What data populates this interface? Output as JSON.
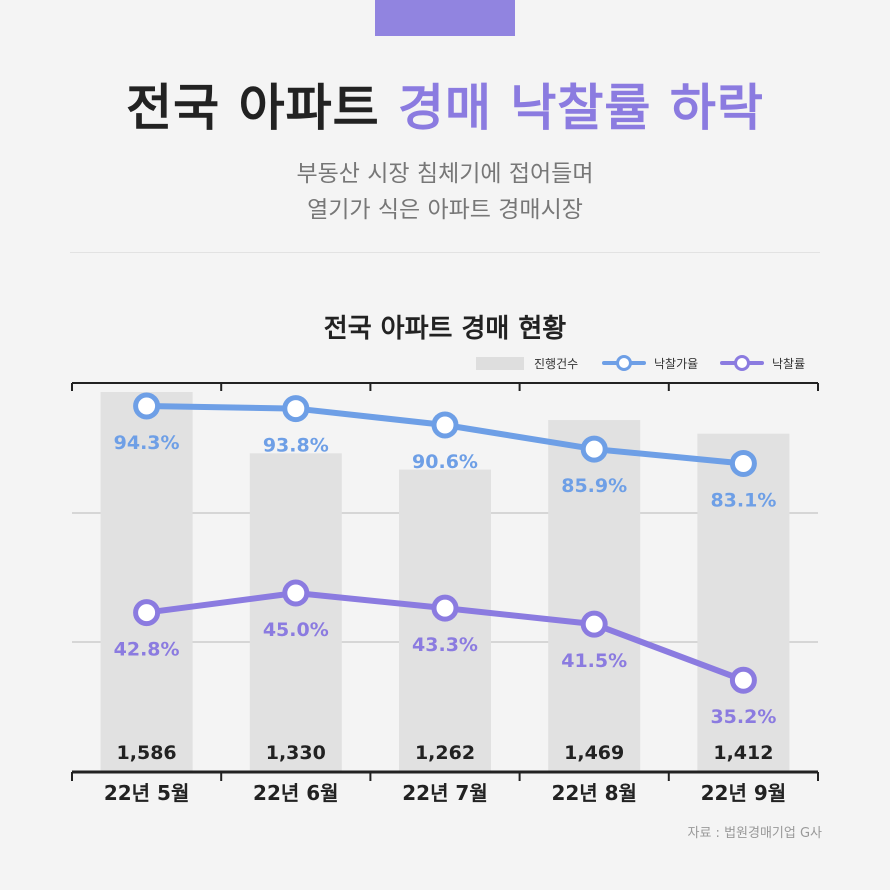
{
  "header": {
    "title_plain": "전국 아파트",
    "title_highlight": "경매 낙찰률 하락",
    "subtitle_line1": "부동산 시장 침체기에 접어들며",
    "subtitle_line2": "열기가 식은 아파트 경매시장"
  },
  "legend": {
    "items": [
      "진행건수",
      "낙찰가율",
      "낙찰률"
    ]
  },
  "source": "자료 : 법원경매기업 G사",
  "colors": {
    "bar": "#e1e1e1",
    "price_rate": "#6e9fe6",
    "win_rate": "#8b7be0",
    "title_accent": "#8b7be0"
  },
  "chart_data": {
    "type": "bar",
    "title": "전국 아파트 경매 현황",
    "categories": [
      "22년 5월",
      "22년 6월",
      "22년 7월",
      "22년 8월",
      "22년 9월"
    ],
    "series": [
      {
        "name": "진행건수",
        "type": "bar",
        "values": [
          1586,
          1330,
          1262,
          1469,
          1412
        ],
        "labels": [
          "1,586",
          "1,330",
          "1,262",
          "1,469",
          "1,412"
        ]
      },
      {
        "name": "낙찰가율",
        "type": "line",
        "values": [
          94.3,
          93.8,
          90.6,
          85.9,
          83.1
        ],
        "labels": [
          "94.3%",
          "93.8%",
          "90.6%",
          "85.9%",
          "83.1%"
        ]
      },
      {
        "name": "낙찰률",
        "type": "line",
        "values": [
          42.8,
          45.0,
          43.3,
          41.5,
          35.2
        ],
        "labels": [
          "42.8%",
          "45.0%",
          "43.3%",
          "41.5%",
          "35.2%"
        ]
      }
    ],
    "xlabel": "",
    "ylabel": "",
    "grid": true,
    "legend_position": "top-right"
  }
}
